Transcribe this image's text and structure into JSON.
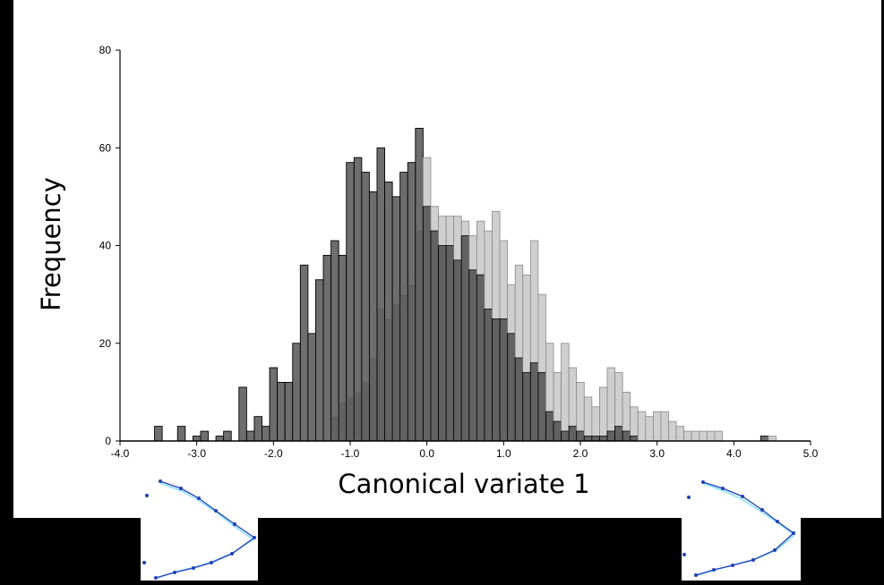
{
  "chart_data": {
    "type": "bar",
    "xlabel": "Canonical variate 1",
    "ylabel": "Frequency",
    "xlim": [
      -4.0,
      5.0
    ],
    "ylim": [
      0,
      80
    ],
    "x_tick_labels": [
      "-4.0",
      "-3.0",
      "-2.0",
      "-1.0",
      "0.0",
      "1.0",
      "2.0",
      "3.0",
      "4.0",
      "5.0"
    ],
    "y_tick_labels": [
      "0",
      "20",
      "40",
      "60",
      "80"
    ],
    "bin_start": -3.55,
    "bin_width": 0.1,
    "grid": false,
    "colors": {
      "series_dark": "#6e6e6e",
      "series_light": "#cfcfcf",
      "overlap": "#555555",
      "outline": "#000000"
    },
    "series": [
      {
        "values": [
          3,
          0,
          0,
          3,
          0,
          1,
          2,
          0,
          1,
          2,
          0,
          11,
          2,
          5,
          3,
          15,
          12,
          12,
          20,
          36,
          22,
          33,
          38,
          41,
          38,
          57,
          58,
          55,
          51,
          60,
          53,
          50,
          55,
          57,
          64,
          48,
          43,
          40,
          40,
          37,
          42,
          35,
          34,
          27,
          25,
          25,
          22,
          17,
          14,
          16,
          14,
          6,
          4,
          2,
          3,
          2,
          1,
          1,
          1,
          2,
          3,
          2,
          1,
          0,
          0,
          0,
          0,
          0,
          0,
          0,
          0,
          0,
          0,
          0,
          0,
          0,
          0,
          0,
          0,
          1,
          0
        ]
      },
      {
        "values": [
          0,
          0,
          0,
          0,
          0,
          0,
          0,
          0,
          0,
          0,
          0,
          0,
          0,
          0,
          0,
          0,
          0,
          0,
          0,
          0,
          0,
          0,
          0,
          5,
          8,
          9,
          10,
          12,
          17,
          27,
          25,
          28,
          30,
          32,
          43,
          58,
          48,
          46,
          46,
          46,
          45,
          42,
          45,
          43,
          47,
          41,
          32,
          36,
          34,
          41,
          30,
          20,
          14,
          20,
          15,
          12,
          9,
          7,
          11,
          15,
          14,
          10,
          7,
          6,
          5,
          6,
          6,
          4,
          3,
          2,
          2,
          2,
          2,
          2,
          0,
          0,
          0,
          0,
          0,
          0,
          1
        ]
      }
    ]
  },
  "shapes": {
    "left": {
      "color": "#1f3fbf",
      "highlight": "#7fe0ff"
    },
    "right": {
      "color": "#1f3fbf",
      "highlight": "#7fe0ff"
    }
  }
}
